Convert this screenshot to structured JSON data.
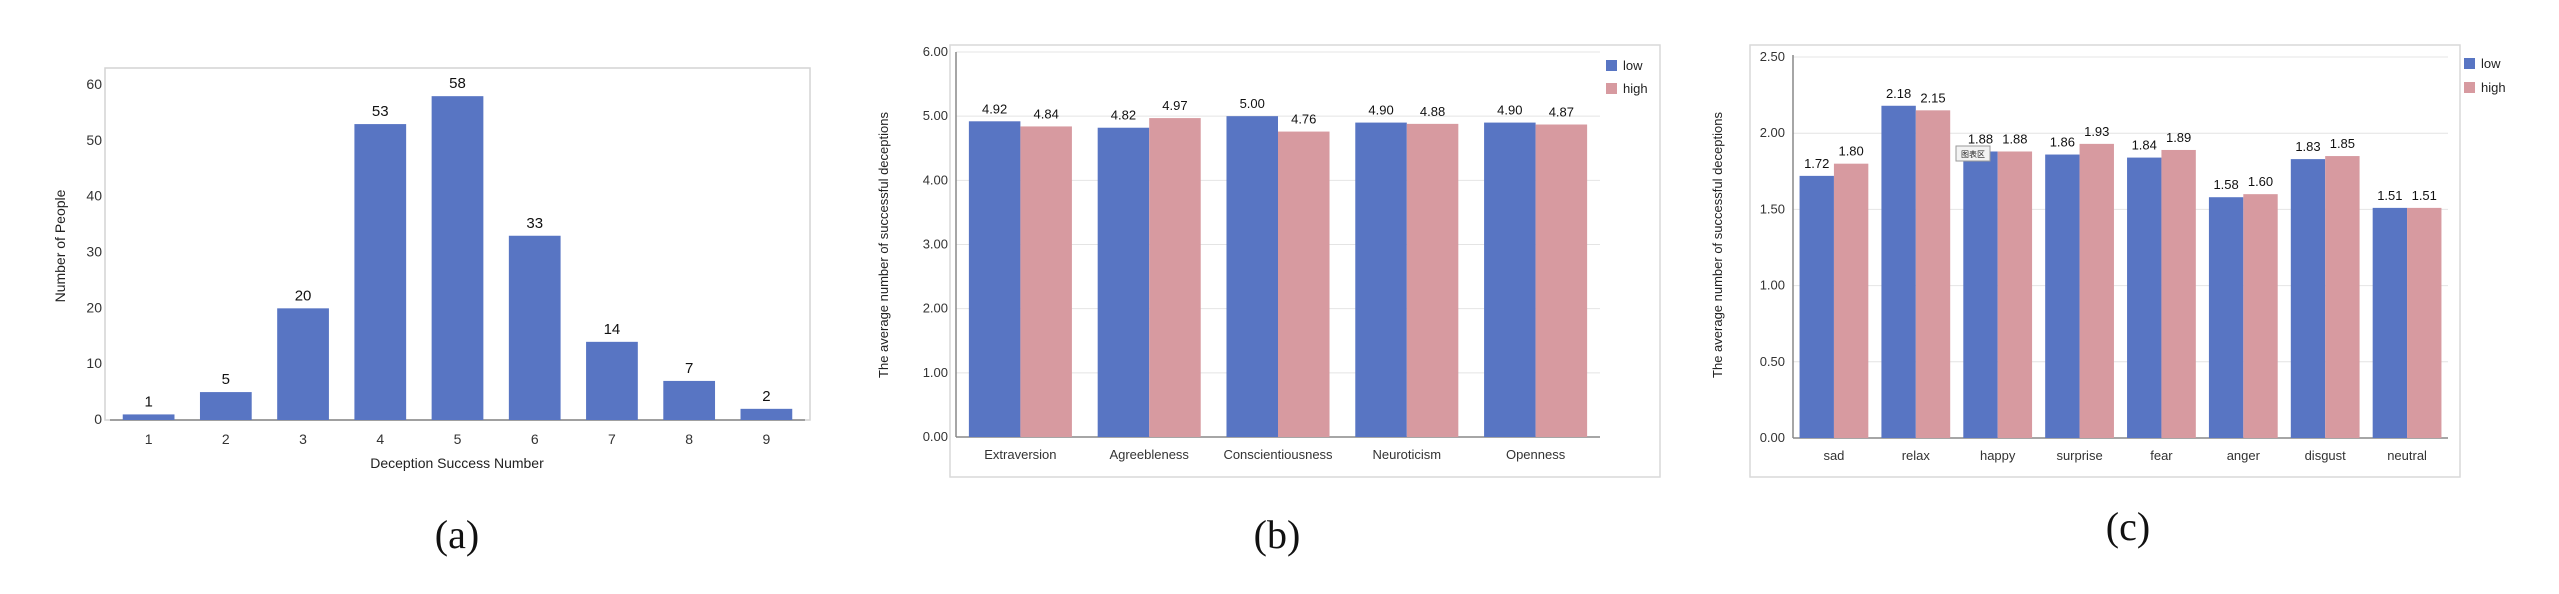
{
  "chart_data": [
    {
      "type": "bar",
      "caption": "(a)",
      "title": "",
      "xlabel": "Deception Success Number",
      "ylabel": "Number of People",
      "categories": [
        "1",
        "2",
        "3",
        "4",
        "5",
        "6",
        "7",
        "8",
        "9"
      ],
      "values": [
        1,
        5,
        20,
        53,
        58,
        33,
        14,
        7,
        2
      ],
      "value_labels": [
        "1",
        "5",
        "20",
        "53",
        "58",
        "33",
        "14",
        "7",
        "2"
      ],
      "ylim": [
        0,
        60
      ],
      "yticks": [
        "0",
        "10",
        "20",
        "30",
        "40",
        "50",
        "60"
      ],
      "color": "#5875c3"
    },
    {
      "type": "bar",
      "caption": "(b)",
      "title": "",
      "xlabel": "",
      "ylabel": "The average number of successful deceptions",
      "categories": [
        "Extraversion",
        "Agreebleness",
        "Conscientiousness",
        "Neuroticism",
        "Openness"
      ],
      "series": [
        {
          "name": "low",
          "color": "#5875c3",
          "values": [
            4.92,
            4.82,
            5.0,
            4.9,
            4.9
          ],
          "labels": [
            "4.92",
            "4.82",
            "5.00",
            "4.90",
            "4.90"
          ]
        },
        {
          "name": "high",
          "color": "#d79aa0",
          "values": [
            4.84,
            4.97,
            4.76,
            4.88,
            4.87
          ],
          "labels": [
            "4.84",
            "4.97",
            "4.76",
            "4.88",
            "4.87"
          ]
        }
      ],
      "ylim": [
        0,
        6
      ],
      "yticks": [
        "0.00",
        "1.00",
        "2.00",
        "3.00",
        "4.00",
        "5.00",
        "6.00"
      ],
      "legend": "top-right"
    },
    {
      "type": "bar",
      "caption": "(c)",
      "title": "",
      "xlabel": "",
      "ylabel": "The average number of successful deceptions",
      "categories": [
        "sad",
        "relax",
        "happy",
        "surprise",
        "fear",
        "anger",
        "disgust",
        "neutral"
      ],
      "series": [
        {
          "name": "low",
          "color": "#5875c3",
          "values": [
            1.72,
            2.18,
            1.88,
            1.86,
            1.84,
            1.58,
            1.83,
            1.51
          ],
          "labels": [
            "1.72",
            "2.18",
            "1.88",
            "1.86",
            "1.84",
            "1.58",
            "1.83",
            "1.51"
          ]
        },
        {
          "name": "high",
          "color": "#d79aa0",
          "values": [
            1.8,
            2.15,
            1.88,
            1.93,
            1.89,
            1.6,
            1.85,
            1.51
          ],
          "labels": [
            "1.80",
            "2.15",
            "1.88",
            "1.93",
            "1.89",
            "1.60",
            "1.85",
            "1.51"
          ]
        }
      ],
      "ylim": [
        0,
        2.5
      ],
      "yticks": [
        "0.00",
        "0.50",
        "1.00",
        "1.50",
        "2.00",
        "2.50"
      ],
      "legend": "top-right",
      "annotation": "图表区"
    }
  ]
}
